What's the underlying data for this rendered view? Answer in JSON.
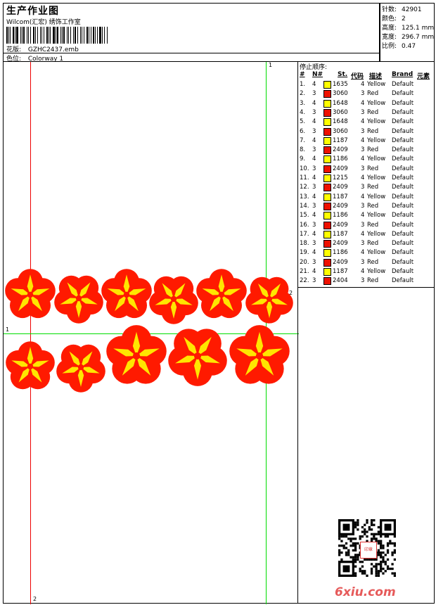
{
  "header": {
    "title": "生产作业图",
    "company": "Wilcom(汇宏) 绣饰工作室",
    "design_label": "花版:",
    "design_value": "GZHC2437.emb",
    "colorway_label": "色位:",
    "colorway_value": "Colorway 1"
  },
  "stats": {
    "stitches_label": "针数:",
    "stitches_value": "42901",
    "colors_label": "颜色:",
    "colors_value": "2",
    "height_label": "高度:",
    "height_value": "125.1 mm",
    "width_label": "宽度:",
    "width_value": "296.7 mm",
    "scale_label": "比例:",
    "scale_value": "0.47"
  },
  "canvas": {
    "guide_top_label": "1",
    "guide_right_label": "2",
    "guide_left_label": "1",
    "guide_bottom_label": "2"
  },
  "stop_sequence": {
    "title": "停止顺序:",
    "headers": {
      "idx": "#",
      "needle": "N#",
      "st": "St.",
      "code": "代码",
      "desc": "描述",
      "brand": "Brand",
      "element": "元素"
    },
    "colors": {
      "Yellow": "#ffff00",
      "Red": "#ee1100"
    },
    "rows": [
      {
        "idx": "1.",
        "n": "4",
        "code": "1635",
        "st": "4",
        "desc": "Yellow",
        "brand": "Default"
      },
      {
        "idx": "2.",
        "n": "3",
        "code": "3060",
        "st": "3",
        "desc": "Red",
        "brand": "Default"
      },
      {
        "idx": "3.",
        "n": "4",
        "code": "1648",
        "st": "4",
        "desc": "Yellow",
        "brand": "Default"
      },
      {
        "idx": "4.",
        "n": "3",
        "code": "3060",
        "st": "3",
        "desc": "Red",
        "brand": "Default"
      },
      {
        "idx": "5.",
        "n": "4",
        "code": "1648",
        "st": "4",
        "desc": "Yellow",
        "brand": "Default"
      },
      {
        "idx": "6.",
        "n": "3",
        "code": "3060",
        "st": "3",
        "desc": "Red",
        "brand": "Default"
      },
      {
        "idx": "7.",
        "n": "4",
        "code": "1187",
        "st": "4",
        "desc": "Yellow",
        "brand": "Default"
      },
      {
        "idx": "8.",
        "n": "3",
        "code": "2409",
        "st": "3",
        "desc": "Red",
        "brand": "Default"
      },
      {
        "idx": "9.",
        "n": "4",
        "code": "1186",
        "st": "4",
        "desc": "Yellow",
        "brand": "Default"
      },
      {
        "idx": "10.",
        "n": "3",
        "code": "2409",
        "st": "3",
        "desc": "Red",
        "brand": "Default"
      },
      {
        "idx": "11.",
        "n": "4",
        "code": "1215",
        "st": "4",
        "desc": "Yellow",
        "brand": "Default"
      },
      {
        "idx": "12.",
        "n": "3",
        "code": "2409",
        "st": "3",
        "desc": "Red",
        "brand": "Default"
      },
      {
        "idx": "13.",
        "n": "4",
        "code": "1187",
        "st": "4",
        "desc": "Yellow",
        "brand": "Default"
      },
      {
        "idx": "14.",
        "n": "3",
        "code": "2409",
        "st": "3",
        "desc": "Red",
        "brand": "Default"
      },
      {
        "idx": "15.",
        "n": "4",
        "code": "1186",
        "st": "4",
        "desc": "Yellow",
        "brand": "Default"
      },
      {
        "idx": "16.",
        "n": "3",
        "code": "2409",
        "st": "3",
        "desc": "Red",
        "brand": "Default"
      },
      {
        "idx": "17.",
        "n": "4",
        "code": "1187",
        "st": "4",
        "desc": "Yellow",
        "brand": "Default"
      },
      {
        "idx": "18.",
        "n": "3",
        "code": "2409",
        "st": "3",
        "desc": "Red",
        "brand": "Default"
      },
      {
        "idx": "19.",
        "n": "4",
        "code": "1186",
        "st": "4",
        "desc": "Yellow",
        "brand": "Default"
      },
      {
        "idx": "20.",
        "n": "3",
        "code": "2409",
        "st": "3",
        "desc": "Red",
        "brand": "Default"
      },
      {
        "idx": "21.",
        "n": "4",
        "code": "1187",
        "st": "4",
        "desc": "Yellow",
        "brand": "Default"
      },
      {
        "idx": "22.",
        "n": "3",
        "code": "2404",
        "st": "3",
        "desc": "Red",
        "brand": "Default"
      }
    ]
  },
  "qr": {
    "icon": "qr-code-icon",
    "seal_text": "印章"
  },
  "watermark": "6xiu.com"
}
